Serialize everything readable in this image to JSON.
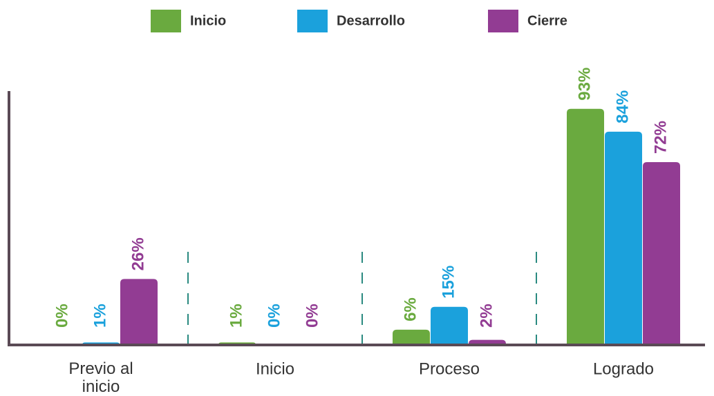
{
  "chart_data": {
    "type": "bar",
    "categories": [
      "Previo al\ninicio",
      "Inicio",
      "Proceso",
      "Logrado"
    ],
    "series": [
      {
        "name": "Inicio",
        "color": "#6aaa3f",
        "values": [
          0,
          1,
          6,
          93
        ],
        "value_labels": [
          "0%",
          "1%",
          "6%",
          "93%"
        ]
      },
      {
        "name": "Desarrollo",
        "color": "#1ba1dc",
        "values": [
          1,
          0,
          15,
          84
        ],
        "value_labels": [
          "1%",
          "0%",
          "15%",
          "84%"
        ]
      },
      {
        "name": "Cierre",
        "color": "#923c93",
        "values": [
          26,
          0,
          2,
          72
        ],
        "value_labels": [
          "26%",
          "0%",
          "2%",
          "72%"
        ]
      }
    ],
    "ylim": [
      0,
      100
    ],
    "legend": "top"
  }
}
